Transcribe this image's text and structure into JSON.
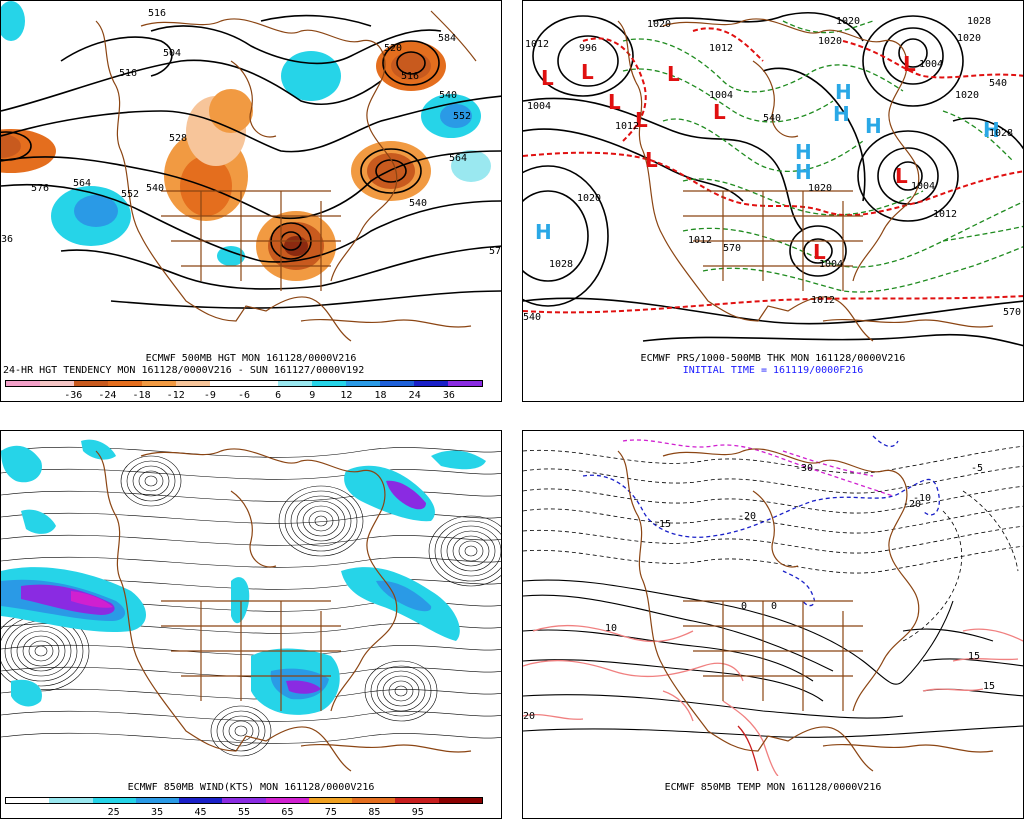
{
  "panels": {
    "top_left": {
      "caption_line1": "ECMWF 500MB HGT MON 161128/0000V216",
      "caption_line2": "24-HR HGT TENDENCY MON 161128/0000V216 - SUN 161127/0000V192",
      "contour_labels": [
        "516",
        "504",
        "516",
        "520",
        "584",
        "516",
        "528",
        "540",
        "552",
        "576",
        "564",
        "552",
        "540",
        "564",
        "540",
        "57",
        "36"
      ],
      "colorbar": {
        "colors": [
          "#f2a0c8",
          "#f5c6c6",
          "#c85a1e",
          "#e46e1e",
          "#f19a42",
          "#f7c59a",
          "#ffffff",
          "#ffffff",
          "#9ae8f0",
          "#26d4e8",
          "#2a9ae6",
          "#1e60d8",
          "#1a20c8",
          "#8a2be2"
        ],
        "labels": [
          "-36",
          "-24",
          "-18",
          "-12",
          "-9",
          "-6",
          "6",
          "9",
          "12",
          "18",
          "24",
          "36"
        ]
      }
    },
    "top_right": {
      "caption_line1": "ECMWF PRS/1000-500MB THK MON 161128/0000V216",
      "caption_line2": "INITIAL TIME = 161119/0000F216",
      "isobar_labels": [
        "1020",
        "1012",
        "996",
        "1004",
        "1012",
        "1020",
        "1020",
        "1004",
        "1020",
        "1028",
        "1012",
        "1004",
        "1020",
        "1012",
        "1020",
        "1004",
        "1028",
        "1012",
        "1028",
        "1020",
        "1004",
        "1012",
        "540",
        "570",
        "540",
        "570",
        "540"
      ],
      "low_symbol": "L",
      "high_symbol": "H"
    },
    "bottom_left": {
      "caption_line1": "ECMWF 850MB WIND(KTS) MON 161128/0000V216",
      "colorbar": {
        "colors": [
          "#ffffff",
          "#9ae8f0",
          "#26d4e8",
          "#2a9ae6",
          "#1a20c8",
          "#8a2be2",
          "#d020d0",
          "#f0a020",
          "#e46e1e",
          "#c81e1e",
          "#8b0000"
        ],
        "labels": [
          "25",
          "35",
          "45",
          "55",
          "65",
          "75",
          "85",
          "95"
        ]
      }
    },
    "bottom_right": {
      "caption_line1": "ECMWF 850MB TEMP MON 161128/0000V216",
      "contour_labels": [
        "-30",
        "-20",
        "-10",
        "-5",
        "0",
        "10",
        "15",
        "20",
        "-15",
        "-20",
        "15",
        "0"
      ]
    }
  },
  "colors": {
    "coastline": "#8b4513",
    "contour": "#000000",
    "thickness_cold": "#1f8b1f",
    "thickness_warm": "#e01010",
    "high_color": "#2aa8e6",
    "low_color": "#e01010",
    "temp_cold": "#1a20c8",
    "temp_very_cold": "#d020d0",
    "temp_warm": "#f08080"
  }
}
